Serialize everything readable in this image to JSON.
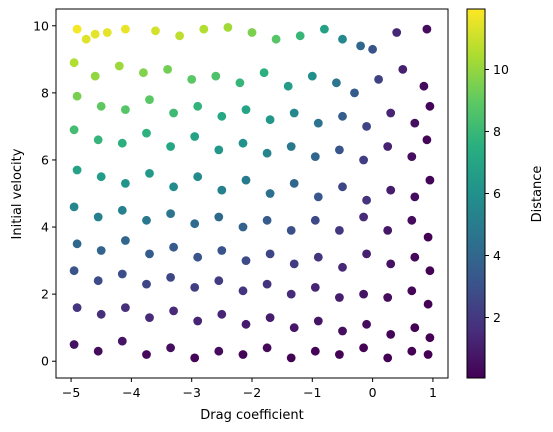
{
  "chart_data": {
    "type": "scatter",
    "title": "",
    "xlabel": "Drag coefficient",
    "ylabel": "Initial velocity",
    "xlim": [
      -5.25,
      1.25
    ],
    "ylim": [
      -0.5,
      10.5
    ],
    "xticks": [
      -5,
      -4,
      -3,
      -2,
      -1,
      0,
      1
    ],
    "xtick_labels": [
      "−5",
      "−4",
      "−3",
      "−2",
      "−1",
      "0",
      "1"
    ],
    "yticks": [
      0,
      2,
      4,
      6,
      8,
      10
    ],
    "ytick_labels": [
      "0",
      "2",
      "4",
      "6",
      "8",
      "10"
    ],
    "grid": false,
    "colormap": "viridis",
    "color_by": "Distance",
    "colorbar": {
      "label": "Distance",
      "range": [
        0.05,
        11.95
      ],
      "ticks": [
        2,
        4,
        6,
        8,
        10
      ],
      "tick_labels": [
        "2",
        "4",
        "6",
        "8",
        "10"
      ]
    },
    "n_points": 1000,
    "x_range": [
      -5,
      1
    ],
    "y_range": [
      0,
      10
    ],
    "color_trend": "Distance increases with initial velocity and decreases as drag coefficient approaches 0 and 1; largest values (about 11-12) at x near -5 to -3 with y near 10, smallest (near 0) at x from 0 to 1",
    "points": [
      {
        "x": -4.9,
        "y": 9.9,
        "c": 11.8
      },
      {
        "x": -4.75,
        "y": 9.6,
        "c": 11.4
      },
      {
        "x": -4.6,
        "y": 9.75,
        "c": 11.5
      },
      {
        "x": -4.4,
        "y": 9.8,
        "c": 11.5
      },
      {
        "x": -4.1,
        "y": 9.9,
        "c": 11.6
      },
      {
        "x": -3.6,
        "y": 9.85,
        "c": 11.2
      },
      {
        "x": -3.2,
        "y": 9.7,
        "c": 10.8
      },
      {
        "x": -2.8,
        "y": 9.9,
        "c": 10.6
      },
      {
        "x": -2.4,
        "y": 9.95,
        "c": 10.3
      },
      {
        "x": -2.0,
        "y": 9.8,
        "c": 9.6
      },
      {
        "x": -1.6,
        "y": 9.6,
        "c": 8.8
      },
      {
        "x": -1.2,
        "y": 9.7,
        "c": 8.0
      },
      {
        "x": -0.8,
        "y": 9.9,
        "c": 6.9
      },
      {
        "x": -0.5,
        "y": 9.6,
        "c": 5.6
      },
      {
        "x": -0.2,
        "y": 9.4,
        "c": 4.0
      },
      {
        "x": 0.0,
        "y": 9.3,
        "c": 3.1
      },
      {
        "x": 0.4,
        "y": 9.8,
        "c": 1.4
      },
      {
        "x": 0.9,
        "y": 9.9,
        "c": 0.4
      },
      {
        "x": -4.95,
        "y": 8.9,
        "c": 10.6
      },
      {
        "x": -4.6,
        "y": 8.5,
        "c": 10.0
      },
      {
        "x": -4.2,
        "y": 8.8,
        "c": 10.2
      },
      {
        "x": -3.8,
        "y": 8.6,
        "c": 9.7
      },
      {
        "x": -3.4,
        "y": 8.7,
        "c": 9.4
      },
      {
        "x": -3.0,
        "y": 8.4,
        "c": 8.9
      },
      {
        "x": -2.6,
        "y": 8.5,
        "c": 8.6
      },
      {
        "x": -2.2,
        "y": 8.3,
        "c": 7.9
      },
      {
        "x": -1.8,
        "y": 8.6,
        "c": 7.6
      },
      {
        "x": -1.4,
        "y": 8.2,
        "c": 6.6
      },
      {
        "x": -1.0,
        "y": 8.5,
        "c": 5.9
      },
      {
        "x": -0.6,
        "y": 8.3,
        "c": 4.7
      },
      {
        "x": -0.3,
        "y": 8.0,
        "c": 3.6
      },
      {
        "x": 0.1,
        "y": 8.4,
        "c": 2.4
      },
      {
        "x": 0.5,
        "y": 8.7,
        "c": 1.1
      },
      {
        "x": 0.85,
        "y": 8.2,
        "c": 0.4
      },
      {
        "x": -4.9,
        "y": 7.9,
        "c": 9.5
      },
      {
        "x": -4.5,
        "y": 7.6,
        "c": 9.0
      },
      {
        "x": -4.1,
        "y": 7.5,
        "c": 8.8
      },
      {
        "x": -3.7,
        "y": 7.8,
        "c": 8.9
      },
      {
        "x": -3.3,
        "y": 7.4,
        "c": 8.2
      },
      {
        "x": -2.9,
        "y": 7.6,
        "c": 7.8
      },
      {
        "x": -2.5,
        "y": 7.3,
        "c": 7.3
      },
      {
        "x": -2.1,
        "y": 7.5,
        "c": 7.0
      },
      {
        "x": -1.7,
        "y": 7.2,
        "c": 6.3
      },
      {
        "x": -1.3,
        "y": 7.4,
        "c": 5.6
      },
      {
        "x": -0.9,
        "y": 7.1,
        "c": 4.6
      },
      {
        "x": -0.5,
        "y": 7.3,
        "c": 3.6
      },
      {
        "x": -0.1,
        "y": 7.0,
        "c": 2.5
      },
      {
        "x": 0.3,
        "y": 7.4,
        "c": 1.3
      },
      {
        "x": 0.7,
        "y": 7.1,
        "c": 0.5
      },
      {
        "x": 0.95,
        "y": 7.6,
        "c": 0.2
      },
      {
        "x": -4.95,
        "y": 6.9,
        "c": 8.3
      },
      {
        "x": -4.55,
        "y": 6.6,
        "c": 7.9
      },
      {
        "x": -4.15,
        "y": 6.5,
        "c": 7.6
      },
      {
        "x": -3.75,
        "y": 6.8,
        "c": 7.7
      },
      {
        "x": -3.35,
        "y": 6.4,
        "c": 7.1
      },
      {
        "x": -2.95,
        "y": 6.7,
        "c": 6.9
      },
      {
        "x": -2.55,
        "y": 6.3,
        "c": 6.3
      },
      {
        "x": -2.15,
        "y": 6.5,
        "c": 6.0
      },
      {
        "x": -1.75,
        "y": 6.2,
        "c": 5.4
      },
      {
        "x": -1.35,
        "y": 6.4,
        "c": 4.9
      },
      {
        "x": -0.95,
        "y": 6.1,
        "c": 4.0
      },
      {
        "x": -0.55,
        "y": 6.3,
        "c": 3.2
      },
      {
        "x": -0.15,
        "y": 6.0,
        "c": 2.2
      },
      {
        "x": 0.25,
        "y": 6.4,
        "c": 1.2
      },
      {
        "x": 0.65,
        "y": 6.1,
        "c": 0.5
      },
      {
        "x": 0.9,
        "y": 6.6,
        "c": 0.2
      },
      {
        "x": -4.9,
        "y": 5.7,
        "c": 6.9
      },
      {
        "x": -4.5,
        "y": 5.5,
        "c": 6.6
      },
      {
        "x": -4.1,
        "y": 5.3,
        "c": 6.2
      },
      {
        "x": -3.7,
        "y": 5.6,
        "c": 6.4
      },
      {
        "x": -3.3,
        "y": 5.2,
        "c": 5.8
      },
      {
        "x": -2.9,
        "y": 5.5,
        "c": 5.7
      },
      {
        "x": -2.5,
        "y": 5.1,
        "c": 5.2
      },
      {
        "x": -2.1,
        "y": 5.4,
        "c": 5.0
      },
      {
        "x": -1.7,
        "y": 5.0,
        "c": 4.4
      },
      {
        "x": -1.3,
        "y": 5.3,
        "c": 4.0
      },
      {
        "x": -0.9,
        "y": 4.9,
        "c": 3.3
      },
      {
        "x": -0.5,
        "y": 5.2,
        "c": 2.6
      },
      {
        "x": -0.1,
        "y": 4.8,
        "c": 1.8
      },
      {
        "x": 0.3,
        "y": 5.1,
        "c": 1.0
      },
      {
        "x": 0.7,
        "y": 4.9,
        "c": 0.4
      },
      {
        "x": 0.95,
        "y": 5.4,
        "c": 0.2
      },
      {
        "x": -4.95,
        "y": 4.6,
        "c": 5.5
      },
      {
        "x": -4.55,
        "y": 4.3,
        "c": 5.2
      },
      {
        "x": -4.15,
        "y": 4.5,
        "c": 5.2
      },
      {
        "x": -3.75,
        "y": 4.2,
        "c": 4.8
      },
      {
        "x": -3.35,
        "y": 4.4,
        "c": 4.7
      },
      {
        "x": -2.95,
        "y": 4.1,
        "c": 4.3
      },
      {
        "x": -2.55,
        "y": 4.3,
        "c": 4.2
      },
      {
        "x": -2.15,
        "y": 4.0,
        "c": 3.8
      },
      {
        "x": -1.75,
        "y": 4.2,
        "c": 3.5
      },
      {
        "x": -1.35,
        "y": 3.9,
        "c": 3.0
      },
      {
        "x": -0.95,
        "y": 4.2,
        "c": 2.7
      },
      {
        "x": -0.55,
        "y": 3.9,
        "c": 2.0
      },
      {
        "x": -0.15,
        "y": 4.3,
        "c": 1.5
      },
      {
        "x": 0.25,
        "y": 3.9,
        "c": 0.8
      },
      {
        "x": 0.65,
        "y": 4.2,
        "c": 0.4
      },
      {
        "x": 0.92,
        "y": 3.7,
        "c": 0.1
      },
      {
        "x": -4.9,
        "y": 3.5,
        "c": 4.1
      },
      {
        "x": -4.5,
        "y": 3.3,
        "c": 3.9
      },
      {
        "x": -4.1,
        "y": 3.6,
        "c": 4.0
      },
      {
        "x": -3.7,
        "y": 3.2,
        "c": 3.6
      },
      {
        "x": -3.3,
        "y": 3.4,
        "c": 3.5
      },
      {
        "x": -2.9,
        "y": 3.1,
        "c": 3.2
      },
      {
        "x": -2.5,
        "y": 3.3,
        "c": 3.1
      },
      {
        "x": -2.1,
        "y": 3.0,
        "c": 2.8
      },
      {
        "x": -1.7,
        "y": 3.2,
        "c": 2.6
      },
      {
        "x": -1.3,
        "y": 2.9,
        "c": 2.2
      },
      {
        "x": -0.9,
        "y": 3.1,
        "c": 1.9
      },
      {
        "x": -0.5,
        "y": 2.8,
        "c": 1.4
      },
      {
        "x": -0.1,
        "y": 3.2,
        "c": 1.1
      },
      {
        "x": 0.3,
        "y": 2.9,
        "c": 0.6
      },
      {
        "x": 0.7,
        "y": 3.1,
        "c": 0.3
      },
      {
        "x": 0.95,
        "y": 2.7,
        "c": 0.1
      },
      {
        "x": -4.95,
        "y": 2.7,
        "c": 3.1
      },
      {
        "x": -4.55,
        "y": 2.4,
        "c": 2.8
      },
      {
        "x": -4.15,
        "y": 2.6,
        "c": 2.9
      },
      {
        "x": -3.75,
        "y": 2.3,
        "c": 2.6
      },
      {
        "x": -3.35,
        "y": 2.5,
        "c": 2.6
      },
      {
        "x": -2.95,
        "y": 2.2,
        "c": 2.3
      },
      {
        "x": -2.55,
        "y": 2.4,
        "c": 2.2
      },
      {
        "x": -2.15,
        "y": 2.1,
        "c": 1.9
      },
      {
        "x": -1.75,
        "y": 2.3,
        "c": 1.8
      },
      {
        "x": -1.35,
        "y": 2.0,
        "c": 1.5
      },
      {
        "x": -0.95,
        "y": 2.2,
        "c": 1.3
      },
      {
        "x": -0.55,
        "y": 1.9,
        "c": 1.0
      },
      {
        "x": -0.15,
        "y": 2.0,
        "c": 0.7
      },
      {
        "x": 0.25,
        "y": 1.9,
        "c": 0.4
      },
      {
        "x": 0.65,
        "y": 2.1,
        "c": 0.2
      },
      {
        "x": 0.92,
        "y": 1.7,
        "c": 0.1
      },
      {
        "x": -4.9,
        "y": 1.6,
        "c": 1.9
      },
      {
        "x": -4.5,
        "y": 1.4,
        "c": 1.7
      },
      {
        "x": -4.1,
        "y": 1.6,
        "c": 1.7
      },
      {
        "x": -3.7,
        "y": 1.3,
        "c": 1.5
      },
      {
        "x": -3.3,
        "y": 1.5,
        "c": 1.5
      },
      {
        "x": -2.9,
        "y": 1.2,
        "c": 1.3
      },
      {
        "x": -2.5,
        "y": 1.4,
        "c": 1.3
      },
      {
        "x": -2.1,
        "y": 1.1,
        "c": 1.0
      },
      {
        "x": -1.7,
        "y": 1.3,
        "c": 1.0
      },
      {
        "x": -1.3,
        "y": 1.0,
        "c": 0.8
      },
      {
        "x": -0.9,
        "y": 1.2,
        "c": 0.7
      },
      {
        "x": -0.5,
        "y": 0.9,
        "c": 0.5
      },
      {
        "x": -0.1,
        "y": 1.1,
        "c": 0.4
      },
      {
        "x": 0.3,
        "y": 0.8,
        "c": 0.2
      },
      {
        "x": 0.7,
        "y": 1.0,
        "c": 0.1
      },
      {
        "x": 0.95,
        "y": 0.7,
        "c": 0.05
      },
      {
        "x": -4.95,
        "y": 0.5,
        "c": 0.6
      },
      {
        "x": -4.55,
        "y": 0.3,
        "c": 0.4
      },
      {
        "x": -4.15,
        "y": 0.6,
        "c": 0.7
      },
      {
        "x": -3.75,
        "y": 0.2,
        "c": 0.3
      },
      {
        "x": -3.35,
        "y": 0.4,
        "c": 0.5
      },
      {
        "x": -2.95,
        "y": 0.1,
        "c": 0.2
      },
      {
        "x": -2.55,
        "y": 0.3,
        "c": 0.4
      },
      {
        "x": -2.15,
        "y": 0.2,
        "c": 0.2
      },
      {
        "x": -1.75,
        "y": 0.4,
        "c": 0.3
      },
      {
        "x": -1.35,
        "y": 0.1,
        "c": 0.1
      },
      {
        "x": -0.95,
        "y": 0.3,
        "c": 0.2
      },
      {
        "x": -0.55,
        "y": 0.2,
        "c": 0.1
      },
      {
        "x": -0.15,
        "y": 0.4,
        "c": 0.1
      },
      {
        "x": 0.25,
        "y": 0.1,
        "c": 0.05
      },
      {
        "x": 0.65,
        "y": 0.3,
        "c": 0.05
      },
      {
        "x": 0.92,
        "y": 0.2,
        "c": 0.05
      }
    ]
  }
}
